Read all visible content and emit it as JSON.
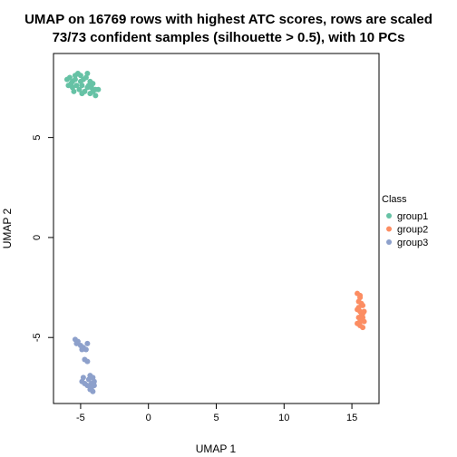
{
  "chart_data": {
    "type": "scatter",
    "title_lines": [
      "UMAP on 16769 rows with highest ATC scores, rows are scaled",
      "73/73 confident samples (silhouette > 0.5), with 10 PCs"
    ],
    "xlabel": "UMAP 1",
    "ylabel": "UMAP 2",
    "xlim": [
      -7,
      17
    ],
    "ylim": [
      -8.3,
      9.2
    ],
    "xticks": [
      -5,
      0,
      5,
      10,
      15
    ],
    "yticks": [
      -5,
      0,
      5
    ],
    "grid": false,
    "legend": {
      "title": "Class",
      "placement": "right",
      "entries": [
        {
          "name": "group1",
          "color": "#66C2A5"
        },
        {
          "name": "group2",
          "color": "#FC8D62"
        },
        {
          "name": "group3",
          "color": "#8DA0CB"
        }
      ]
    },
    "series": [
      {
        "name": "group1",
        "color": "#66C2A5",
        "points": [
          [
            -6.0,
            7.9
          ],
          [
            -5.8,
            8.0
          ],
          [
            -5.6,
            7.8
          ],
          [
            -5.4,
            8.1
          ],
          [
            -5.2,
            8.2
          ],
          [
            -5.0,
            8.1
          ],
          [
            -4.8,
            7.9
          ],
          [
            -4.6,
            8.0
          ],
          [
            -4.5,
            8.2
          ],
          [
            -4.3,
            7.8
          ],
          [
            -4.1,
            7.7
          ],
          [
            -3.9,
            7.4
          ],
          [
            -3.7,
            7.4
          ],
          [
            -5.9,
            7.6
          ],
          [
            -5.6,
            7.5
          ],
          [
            -5.5,
            7.3
          ],
          [
            -5.3,
            7.6
          ],
          [
            -5.1,
            7.4
          ],
          [
            -4.9,
            7.6
          ],
          [
            -4.7,
            7.3
          ],
          [
            -4.5,
            7.5
          ],
          [
            -4.3,
            7.2
          ],
          [
            -4.1,
            7.3
          ],
          [
            -3.9,
            7.1
          ],
          [
            -5.7,
            7.7
          ],
          [
            -5.0,
            7.8
          ],
          [
            -4.4,
            7.6
          ],
          [
            -4.9,
            7.2
          ],
          [
            -4.2,
            7.5
          ],
          [
            -5.4,
            7.9
          ]
        ]
      },
      {
        "name": "group2",
        "color": "#FC8D62",
        "points": [
          [
            15.4,
            -2.8
          ],
          [
            15.6,
            -2.9
          ],
          [
            15.5,
            -3.2
          ],
          [
            15.7,
            -3.3
          ],
          [
            15.8,
            -3.4
          ],
          [
            15.4,
            -3.6
          ],
          [
            15.6,
            -3.7
          ],
          [
            15.8,
            -3.8
          ],
          [
            15.5,
            -4.0
          ],
          [
            15.7,
            -4.1
          ],
          [
            15.9,
            -4.2
          ],
          [
            15.6,
            -4.4
          ],
          [
            15.8,
            -4.5
          ],
          [
            15.4,
            -4.3
          ],
          [
            15.7,
            -3.9
          ],
          [
            15.5,
            -3.5
          ],
          [
            15.9,
            -3.7
          ],
          [
            15.6,
            -4.2
          ],
          [
            15.8,
            -4.0
          ],
          [
            15.6,
            -3.0
          ]
        ]
      },
      {
        "name": "group3",
        "color": "#8DA0CB",
        "points": [
          [
            -5.4,
            -5.1
          ],
          [
            -5.2,
            -5.2
          ],
          [
            -5.0,
            -5.4
          ],
          [
            -4.8,
            -5.5
          ],
          [
            -4.6,
            -5.6
          ],
          [
            -4.5,
            -5.3
          ],
          [
            -4.7,
            -6.1
          ],
          [
            -4.5,
            -6.2
          ],
          [
            -5.3,
            -5.3
          ],
          [
            -4.9,
            -5.6
          ],
          [
            -4.3,
            -6.9
          ],
          [
            -4.1,
            -7.0
          ],
          [
            -4.0,
            -7.2
          ],
          [
            -4.2,
            -7.3
          ],
          [
            -4.9,
            -7.2
          ],
          [
            -4.7,
            -7.3
          ],
          [
            -4.5,
            -7.4
          ],
          [
            -4.3,
            -7.6
          ],
          [
            -4.1,
            -7.7
          ],
          [
            -4.0,
            -7.4
          ],
          [
            -4.4,
            -7.1
          ],
          [
            -4.8,
            -7.0
          ],
          [
            -4.2,
            -7.5
          ]
        ]
      }
    ]
  }
}
